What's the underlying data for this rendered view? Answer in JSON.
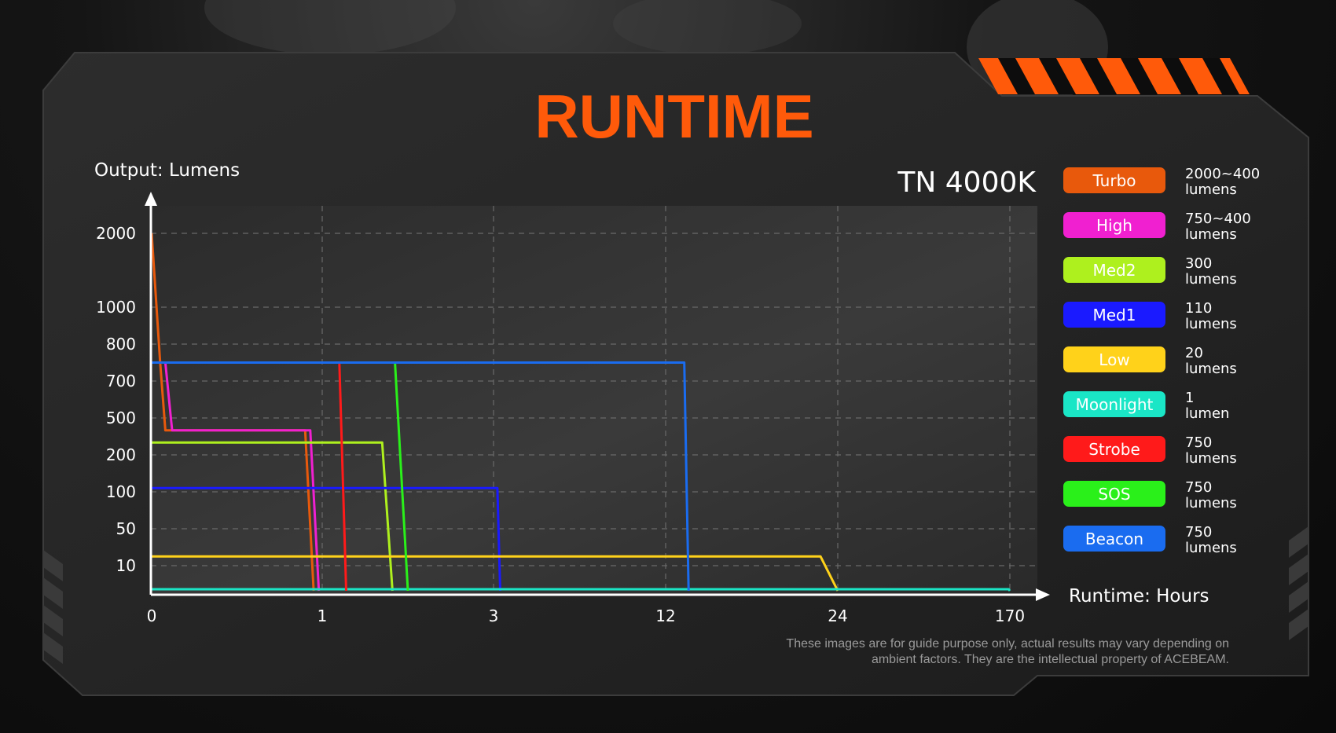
{
  "page": {
    "title": "RUNTIME",
    "title_color": "#ff5a0a",
    "model": "TN 4000K",
    "disclaimer_line1": "These images are for guide purpose only, actual results may vary depending on",
    "disclaimer_line2": "ambient factors. They are the intellectual property of  ACEBEAM."
  },
  "chart_data": {
    "type": "line",
    "ylabel": "Output: Lumens",
    "xlabel": "Runtime: Hours",
    "y_ticks": [
      "2000",
      "1000",
      "800",
      "700",
      "500",
      "200",
      "100",
      "50",
      "10"
    ],
    "x_ticks": [
      "0",
      "1",
      "3",
      "12",
      "24",
      "170"
    ],
    "y_scale": "non-linear (categorical ticks)",
    "x_scale": "non-linear (categorical ticks)",
    "grid": true,
    "legend_position": "right",
    "series": [
      {
        "name": "Turbo",
        "color": "#e8590c",
        "output": "2000~400 lumens",
        "points": [
          [
            0,
            2000
          ],
          [
            0.05,
            750
          ],
          [
            0.08,
            400
          ],
          [
            0.9,
            400
          ],
          [
            0.95,
            0
          ]
        ]
      },
      {
        "name": "High",
        "color": "#f020d0",
        "output": "750~400 lumens",
        "points": [
          [
            0,
            750
          ],
          [
            0.08,
            750
          ],
          [
            0.12,
            400
          ],
          [
            0.93,
            400
          ],
          [
            0.98,
            0
          ]
        ]
      },
      {
        "name": "Med2",
        "color": "#aef01e",
        "output": "300 lumens",
        "points": [
          [
            0,
            300
          ],
          [
            1.7,
            300
          ],
          [
            1.82,
            0
          ]
        ]
      },
      {
        "name": "Med1",
        "color": "#1a1aff",
        "output": "110 lumens",
        "points": [
          [
            0,
            110
          ],
          [
            3.2,
            110
          ],
          [
            3.35,
            0
          ]
        ]
      },
      {
        "name": "Low",
        "color": "#ffd21a",
        "output": "20 lumens",
        "points": [
          [
            0,
            20
          ],
          [
            22.8,
            20
          ],
          [
            24.0,
            0
          ]
        ]
      },
      {
        "name": "Moonlight",
        "color": "#1ae6c6",
        "output": "1 lumen",
        "points": [
          [
            0,
            1
          ],
          [
            169,
            1
          ],
          [
            170,
            0
          ]
        ]
      },
      {
        "name": "Strobe",
        "color": "#ff1a1a",
        "output": "750 lumens",
        "points": [
          [
            0,
            750
          ],
          [
            1.2,
            750
          ],
          [
            1.28,
            0
          ]
        ]
      },
      {
        "name": "SOS",
        "color": "#2af01a",
        "output": "750 lumens",
        "points": [
          [
            0,
            750
          ],
          [
            1.85,
            750
          ],
          [
            2.0,
            0
          ]
        ]
      },
      {
        "name": "Beacon",
        "color": "#1a6cf0",
        "output": "750 lumens",
        "points": [
          [
            0,
            750
          ],
          [
            13.3,
            750
          ],
          [
            13.6,
            0
          ]
        ]
      }
    ]
  },
  "legend": [
    {
      "label": "Turbo",
      "text_color": "#ffffff",
      "desc1": "2000~400",
      "desc2": "lumens"
    },
    {
      "label": "High",
      "text_color": "#ffffff",
      "desc1": "750~400",
      "desc2": "lumens"
    },
    {
      "label": "Med2",
      "text_color": "#ffffff",
      "desc1": "300",
      "desc2": "lumens"
    },
    {
      "label": "Med1",
      "text_color": "#ffffff",
      "desc1": "110",
      "desc2": "lumens"
    },
    {
      "label": "Low",
      "text_color": "#ffffff",
      "desc1": "20",
      "desc2": "lumens"
    },
    {
      "label": "Moonlight",
      "text_color": "#ffffff",
      "desc1": "1",
      "desc2": "lumen"
    },
    {
      "label": "Strobe",
      "text_color": "#ffffff",
      "desc1": "750",
      "desc2": "lumens"
    },
    {
      "label": "SOS",
      "text_color": "#ffffff",
      "desc1": "750",
      "desc2": "lumens"
    },
    {
      "label": "Beacon",
      "text_color": "#ffffff",
      "desc1": "750",
      "desc2": "lumens"
    }
  ]
}
